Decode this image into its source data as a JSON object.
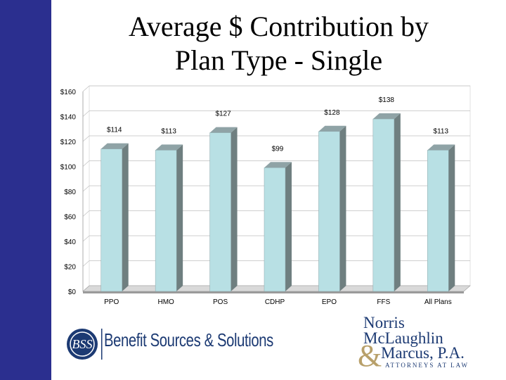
{
  "title_line1": "Average $ Contribution by",
  "title_line2": "Plan Type - Single",
  "chart_data": {
    "type": "bar",
    "categories": [
      "PPO",
      "HMO",
      "POS",
      "CDHP",
      "EPO",
      "FFS",
      "All Plans"
    ],
    "values": [
      114,
      113,
      127,
      99,
      128,
      138,
      113
    ],
    "data_labels": [
      "$114",
      "$113",
      "$127",
      "$99",
      "$128",
      "$138",
      "$113"
    ],
    "y_ticks": [
      "$0",
      "$20",
      "$40",
      "$60",
      "$80",
      "$100",
      "$120",
      "$140",
      "$160"
    ],
    "ylim": [
      0,
      160
    ],
    "grid": true,
    "colors": {
      "bar_front": "#b8e0e4",
      "bar_side": "#6f7f80",
      "bar_top": "#8fa3a6",
      "grid": "#bfbfbf",
      "floor": "#9a9a9a"
    }
  },
  "logos": {
    "bss_name": "Benefit Sources & Solutions",
    "nmm_line1": "Norris",
    "nmm_line2": "McLaughlin",
    "nmm_line3": "Marcus, P.A.",
    "nmm_tagline": "ATTORNEYS AT LAW",
    "colors": {
      "sidebar": "#2b2f8f",
      "brand_blue": "#1c3a73",
      "brand_gold": "#b8a06a"
    }
  }
}
